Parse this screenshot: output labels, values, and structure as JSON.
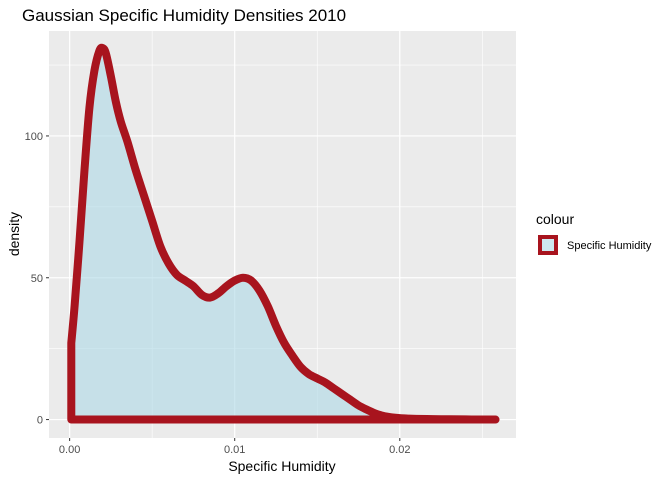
{
  "chart_data": {
    "type": "area",
    "title": "Gaussian Specific Humidity Densities 2010",
    "xlabel": "Specific Humidity",
    "ylabel": "density",
    "xlim": [
      -0.00125,
      0.02704
    ],
    "ylim": [
      -6.5,
      137
    ],
    "x_ticks": [
      0.0,
      0.01,
      0.02
    ],
    "x_tick_labels": [
      "0.00",
      "0.01",
      "0.02"
    ],
    "y_ticks": [
      0,
      50,
      100
    ],
    "y_tick_labels": [
      "0",
      "50",
      "100"
    ],
    "grid": true,
    "legend": {
      "title": "colour",
      "position": "right",
      "entries": [
        {
          "label": "Specific Humidity"
        }
      ]
    },
    "colors": {
      "fill": "#ADD8E6",
      "outline": "#A8141E",
      "panel": "#EBEBEB",
      "grid": "#FFFFFF"
    },
    "series": [
      {
        "name": "Specific Humidity",
        "x": [
          0.0001,
          0.0003,
          0.0006,
          0.0009,
          0.0012,
          0.0015,
          0.0018,
          0.002,
          0.0022,
          0.0025,
          0.0028,
          0.0031,
          0.0035,
          0.004,
          0.0045,
          0.005,
          0.0055,
          0.006,
          0.0065,
          0.007,
          0.0075,
          0.008,
          0.0085,
          0.009,
          0.0095,
          0.01,
          0.0105,
          0.011,
          0.0115,
          0.012,
          0.0125,
          0.013,
          0.0135,
          0.014,
          0.0145,
          0.015,
          0.0155,
          0.016,
          0.0165,
          0.017,
          0.0175,
          0.018,
          0.0185,
          0.019,
          0.0195,
          0.02,
          0.0205,
          0.021,
          0.022,
          0.023,
          0.024,
          0.025,
          0.0258
        ],
        "y": [
          27,
          40,
          63,
          88,
          110,
          123,
          130,
          131,
          129,
          121,
          112,
          105,
          98,
          88,
          79,
          70,
          61,
          55,
          51,
          49,
          47,
          44,
          43,
          44.5,
          47,
          49,
          50,
          49,
          45.5,
          40,
          33,
          27,
          22.5,
          18.5,
          16,
          14.5,
          13,
          11,
          9,
          7,
          5,
          3.5,
          2.2,
          1.3,
          0.8,
          0.5,
          0.35,
          0.25,
          0.15,
          0.1,
          0.05,
          0.02,
          0.0
        ]
      }
    ]
  }
}
